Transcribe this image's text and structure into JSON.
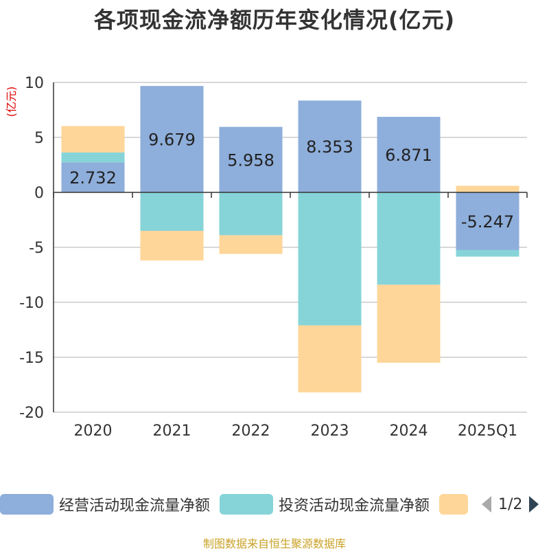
{
  "title": "各项现金流净额历年变化情况(亿元)",
  "source": "制图数据来自恒生聚源数据库",
  "legend": {
    "items": [
      "经营活动现金流量净额",
      "投资活动现金流量净额",
      ""
    ],
    "page": "1/2"
  },
  "colors": {
    "operating": "#8eaedb",
    "investing": "#86d4d8",
    "financing": "#ffd699",
    "unit_label": "#e00000",
    "source": "#c9a227"
  },
  "chart_data": {
    "type": "bar",
    "stacked": true,
    "title": "各项现金流净额历年变化情况(亿元)",
    "ylabel": "(亿元)",
    "ylim": [
      -20,
      10
    ],
    "yticks": [
      10,
      5,
      0,
      -5,
      -10,
      -15,
      -20
    ],
    "grid": true,
    "categories": [
      "2020",
      "2021",
      "2022",
      "2023",
      "2024",
      "2025Q1"
    ],
    "series": [
      {
        "name": "经营活动现金流量净额",
        "values": [
          2.732,
          9.679,
          5.958,
          8.353,
          6.871,
          -5.247
        ],
        "labels": [
          "2.732",
          "9.679",
          "5.958",
          "8.353",
          "6.871",
          "-5.247"
        ]
      },
      {
        "name": "投资活动现金流量净额",
        "values": [
          0.9,
          -3.5,
          -3.9,
          -12.1,
          -8.4,
          -0.6
        ]
      },
      {
        "name": "",
        "values": [
          2.4,
          -2.7,
          -1.7,
          -6.1,
          -7.1,
          0.6
        ]
      }
    ]
  }
}
